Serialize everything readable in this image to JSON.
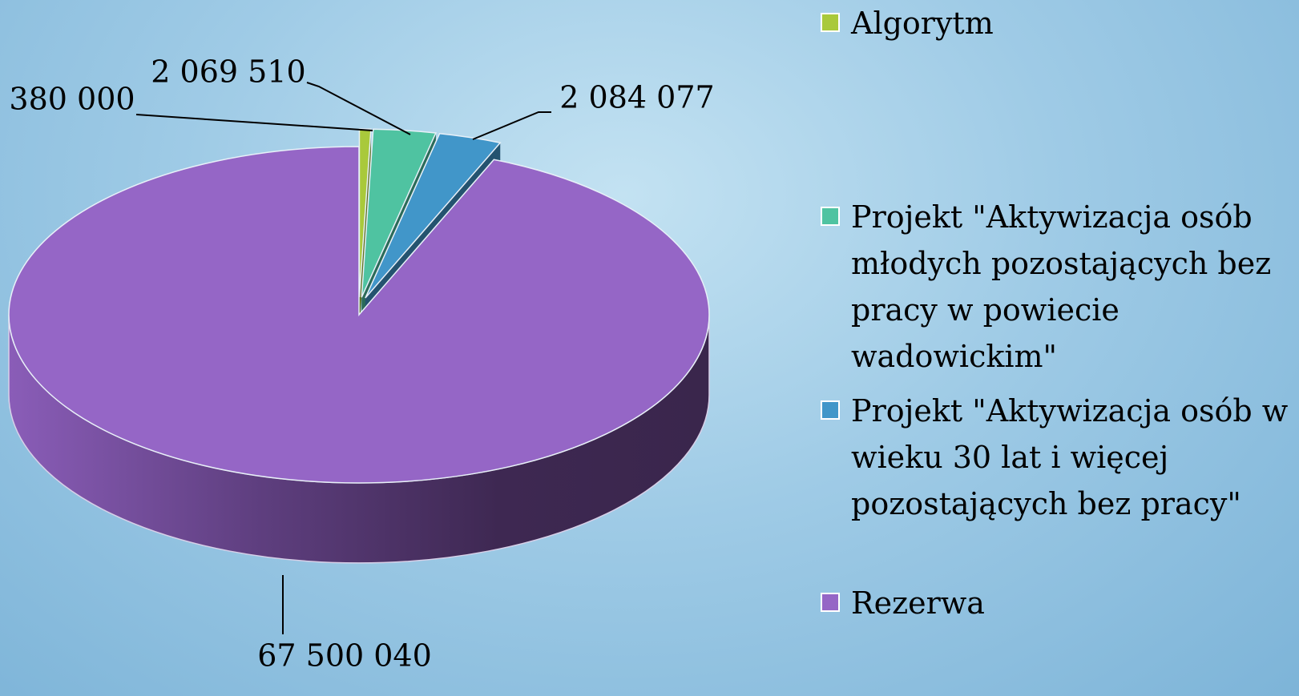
{
  "chart_data": {
    "type": "pie",
    "categories": [
      "Algorytm",
      "Projekt \"Aktywizacja osób młodych pozostających bez pracy w powiecie wadowickim\"",
      "Projekt \"Aktywizacja osób w wieku 30 lat i więcej pozostających bez pracy\"",
      "Rezerwa"
    ],
    "values": [
      380000,
      2069510,
      2084077,
      67500040
    ],
    "value_labels": [
      "380 000",
      "2 069 510",
      "2 084 077",
      "67 500 040"
    ],
    "colors": [
      "#a9c93b",
      "#4fc3a1",
      "#4196c9",
      "#9566c6"
    ],
    "legend": "right"
  }
}
